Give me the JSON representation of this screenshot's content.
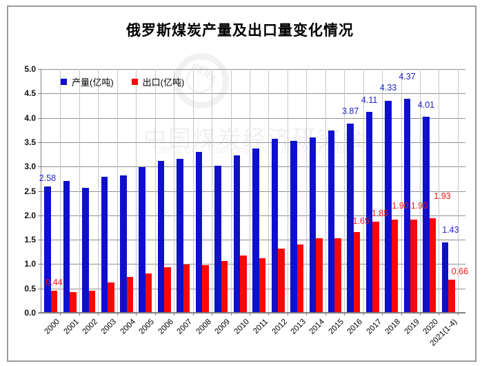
{
  "window": {
    "title": "俄罗斯煤炭产量及出口量变化情况"
  },
  "legend": {
    "items": [
      {
        "label": "产量(亿吨)",
        "color": "#0f10cb"
      },
      {
        "label": "出口(亿吨)",
        "color": "#fb0707"
      }
    ]
  },
  "watermark": {
    "logo_text": "CERA",
    "cn_text": "中国煤炭经济研究会",
    "en_text": "China Coal Economic Research Association"
  },
  "chart_data": {
    "type": "bar",
    "title": "俄罗斯煤炭产量及出口量变化情况",
    "xlabel": "",
    "ylabel": "",
    "ylim": [
      0,
      5
    ],
    "ytick_step": 0.5,
    "yticks": [
      "5.0",
      "4.5",
      "4.0",
      "3.5",
      "3.0",
      "2.5",
      "2.0",
      "1.5",
      "1.0",
      "0.5",
      "0.0"
    ],
    "grid": "both",
    "legend_position": "inside-top-left",
    "categories": [
      "2000",
      "2001",
      "2002",
      "2003",
      "2004",
      "2005",
      "2006",
      "2007",
      "2008",
      "2009",
      "2010",
      "2011",
      "2012",
      "2013",
      "2014",
      "2015",
      "2016",
      "2017",
      "2018",
      "2019",
      "2020",
      "2021(1-4)"
    ],
    "series": [
      {
        "name": "产量(亿吨)",
        "color": "#0f10cb",
        "values": [
          2.58,
          2.69,
          2.55,
          2.77,
          2.81,
          2.98,
          3.1,
          3.14,
          3.29,
          3.01,
          3.22,
          3.36,
          3.55,
          3.52,
          3.58,
          3.73,
          3.87,
          4.11,
          4.33,
          4.37,
          4.01,
          1.43
        ],
        "point_labels": {
          "0": "2.58",
          "16": "3.87",
          "17": "4.11",
          "18": "4.33",
          "19": "4.37",
          "20": "4.01",
          "21": "1.43"
        }
      },
      {
        "name": "出口(亿吨)",
        "color": "#fb0707",
        "values": [
          0.44,
          0.41,
          0.44,
          0.61,
          0.72,
          0.79,
          0.92,
          0.98,
          0.97,
          1.05,
          1.16,
          1.11,
          1.3,
          1.39,
          1.52,
          1.52,
          1.65,
          1.85,
          1.9,
          1.9,
          1.93,
          0.66
        ],
        "point_labels": {
          "0": "0.44",
          "16": "1.65",
          "17": "1.85",
          "18": "1.90",
          "19": "1.90",
          "20": "1.93",
          "21": "0.66"
        }
      }
    ]
  }
}
